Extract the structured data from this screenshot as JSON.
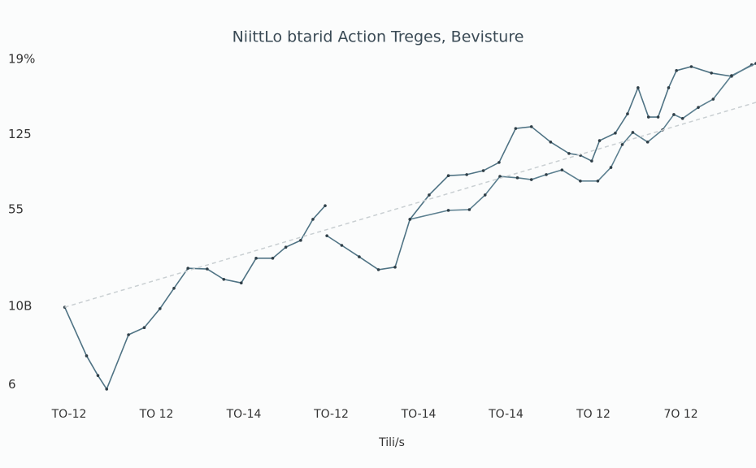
{
  "chart_data": {
    "type": "line",
    "title": "NiittLo btarid Action Treges, Bevisture",
    "x_label": "Tili/s",
    "xlim": [
      0,
      7.86
    ],
    "xticks": [
      {
        "value": 0,
        "label": "TO-12"
      },
      {
        "value": 1,
        "label": "TO 12"
      },
      {
        "value": 2,
        "label": "TO-14"
      },
      {
        "value": 3,
        "label": "TO-12"
      },
      {
        "value": 4,
        "label": "TO-14"
      },
      {
        "value": 5,
        "label": "TO-14"
      },
      {
        "value": 6,
        "label": "TO 12"
      },
      {
        "value": 7,
        "label": "7O 12"
      },
      8
    ],
    "ylim": [
      0,
      100
    ],
    "yticks": [
      6,
      {
        "value": 28,
        "label": "10B"
      },
      55,
      {
        "value": 76,
        "label": "125"
      },
      {
        "value": 97,
        "label": "19%"
      }
    ],
    "series": [
      {
        "color": "#4f7384",
        "x": [
          -0.05,
          0.2,
          0.33,
          0.43,
          0.68,
          0.86,
          1.04,
          1.2,
          1.36,
          1.58,
          1.77,
          1.97,
          2.14,
          2.33,
          2.48,
          2.65,
          2.79,
          2.93,
          null,
          2.95,
          3.12,
          3.32,
          3.54,
          3.73,
          3.9,
          4.12,
          4.34,
          4.55,
          4.74,
          4.92,
          5.11,
          5.29,
          5.51,
          5.72,
          5.85,
          5.98,
          6.07,
          6.25,
          6.39,
          6.51,
          6.63,
          6.74,
          6.86,
          6.95,
          7.12,
          7.35,
          7.58,
          7.81
        ],
        "values": [
          27.7,
          14.1,
          8.6,
          4.8,
          20.0,
          22.0,
          27.3,
          33.0,
          38.6,
          38.4,
          35.5,
          34.5,
          41.4,
          41.4,
          44.5,
          46.4,
          52.3,
          56.1,
          null,
          47.7,
          45.0,
          41.8,
          38.2,
          38.9,
          52.3,
          59.1,
          64.5,
          64.8,
          65.9,
          68.2,
          77.7,
          78.2,
          73.9,
          70.7,
          70.2,
          68.6,
          74.3,
          76.4,
          81.8,
          89.1,
          80.9,
          80.9,
          89.1,
          93.9,
          95.0,
          93.2,
          92.3,
          95.5
        ]
      },
      {
        "color": "#5b7f8f",
        "x": [
          3.9,
          4.34,
          4.58,
          4.76,
          4.93,
          5.13,
          5.29,
          5.46,
          5.64,
          5.85,
          6.05,
          6.2,
          6.33,
          6.45,
          6.62,
          6.79,
          6.92,
          7.02,
          7.2,
          7.37,
          7.58,
          7.86
        ],
        "values": [
          52.3,
          54.8,
          55.0,
          59.1,
          64.3,
          63.9,
          63.4,
          64.8,
          66.1,
          63.0,
          63.0,
          66.8,
          73.2,
          76.6,
          73.9,
          77.3,
          81.6,
          80.5,
          83.6,
          85.9,
          92.5,
          95.9
        ]
      },
      {
        "color": "#c9cfd2",
        "dashed": true,
        "x": [
          -0.05,
          7.86
        ],
        "values": [
          27.7,
          85.0
        ]
      }
    ]
  }
}
